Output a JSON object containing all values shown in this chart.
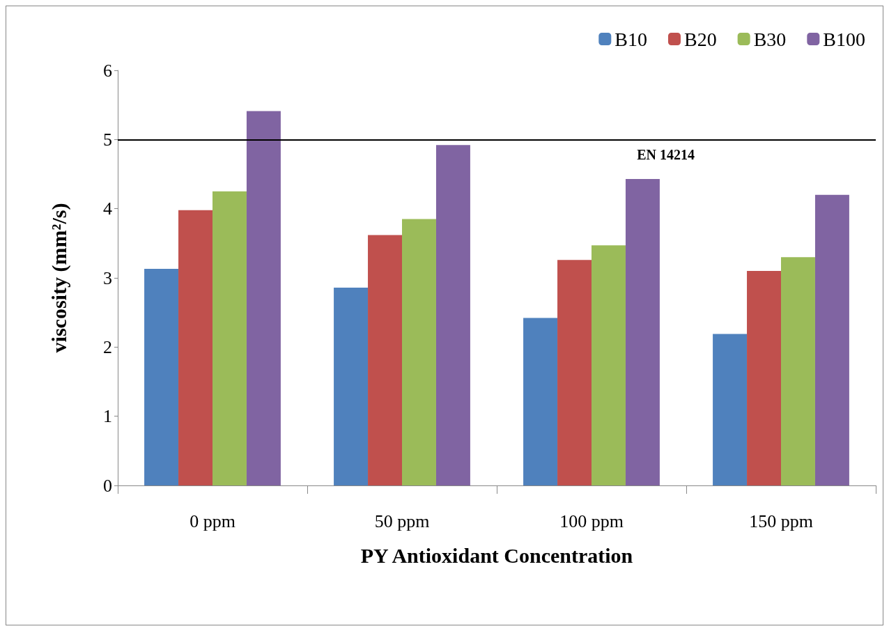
{
  "chart_data": {
    "type": "bar",
    "xlabel": "PY Antioxidant Concentration",
    "ylabel": "viscosity (mm²/s)",
    "categories": [
      "0 ppm",
      "50 ppm",
      "100 ppm",
      "150 ppm"
    ],
    "series": [
      {
        "name": "B10",
        "color": "#4f81bd",
        "values": [
          3.13,
          2.86,
          2.42,
          2.19
        ]
      },
      {
        "name": "B20",
        "color": "#c0504d",
        "values": [
          3.98,
          3.62,
          3.26,
          3.1
        ]
      },
      {
        "name": "B30",
        "color": "#9bbb59",
        "values": [
          4.25,
          3.85,
          3.47,
          3.3
        ]
      },
      {
        "name": "B100",
        "color": "#8064a2",
        "values": [
          5.41,
          4.92,
          4.43,
          4.2
        ]
      }
    ],
    "ylim": [
      0,
      6
    ],
    "yticks": [
      0,
      1,
      2,
      3,
      4,
      5,
      6
    ],
    "ref_lines": [
      {
        "axis": "y",
        "value": 5,
        "label": "EN 14214",
        "color": "#000000"
      }
    ],
    "grid": false,
    "legend": "top right"
  }
}
